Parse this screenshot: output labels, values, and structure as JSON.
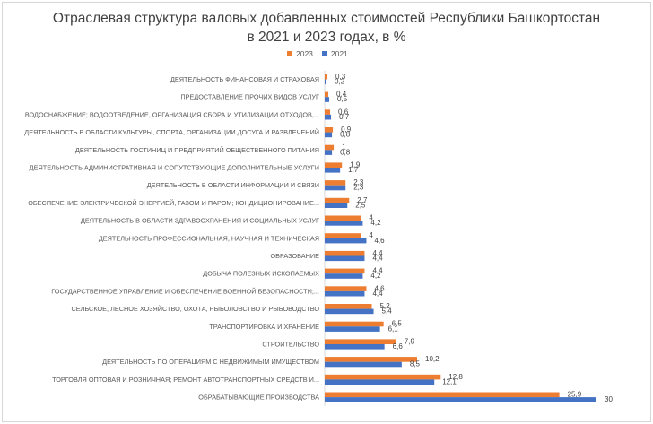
{
  "colors": {
    "series_2023": "#ED7D31",
    "series_2021": "#4472C4"
  },
  "chart_data": {
    "type": "bar",
    "orientation": "horizontal",
    "title": "Отраслевая структура валовых добавленных стоимостей  Республики Башкортостан в 2021 и 2023 годах, в %",
    "title_lines": [
      "Отраслевая структура валовых добавленных стоимостей  Республики Башкортостан",
      "в 2021 и 2023 годах, в %"
    ],
    "xlabel": "",
    "ylabel": "",
    "xlim": [
      0,
      30
    ],
    "grid": false,
    "legend_position": "top",
    "categories": [
      "ДЕЯТЕЛЬНОСТЬ ФИНАНСОВАЯ И СТРАХОВАЯ",
      "ПРЕДОСТАВЛЕНИЕ ПРОЧИХ ВИДОВ УСЛУГ",
      "ВОДОСНАБЖЕНИЕ; ВОДООТВЕДЕНИЕ, ОРГАНИЗАЦИЯ СБОРА И УТИЛИЗАЦИИ ОТХОДОВ,...",
      "ДЕЯТЕЛЬНОСТЬ В ОБЛАСТИ КУЛЬТУРЫ, СПОРТА, ОРГАНИЗАЦИИ ДОСУГА И РАЗВЛЕЧЕНИЙ",
      "ДЕЯТЕЛЬНОСТЬ ГОСТИНИЦ И ПРЕДПРИЯТИЙ ОБЩЕСТВЕННОГО ПИТАНИЯ",
      "ДЕЯТЕЛЬНОСТЬ АДМИНИСТРАТИВНАЯ И СОПУТСТВУЮЩИЕ ДОПОЛНИТЕЛЬНЫЕ УСЛУГИ",
      "ДЕЯТЕЛЬНОСТЬ В ОБЛАСТИ ИНФОРМАЦИИ И СВЯЗИ",
      "ОБЕСПЕЧЕНИЕ ЭЛЕКТРИЧЕСКОЙ ЭНЕРГИЕЙ, ГАЗОМ И ПАРОМ; КОНДИЦИОНИРОВАНИЕ...",
      "ДЕЯТЕЛЬНОСТЬ В ОБЛАСТИ ЗДРАВООХРАНЕНИЯ И СОЦИАЛЬНЫХ УСЛУГ",
      "ДЕЯТЕЛЬНОСТЬ ПРОФЕССИОНАЛЬНАЯ, НАУЧНАЯ И ТЕХНИЧЕСКАЯ",
      "ОБРАЗОВАНИЕ",
      "ДОБЫЧА ПОЛЕЗНЫХ ИСКОПАЕМЫХ",
      "ГОСУДАРСТВЕННОЕ УПРАВЛЕНИЕ И ОБЕСПЕЧЕНИЕ ВОЕННОЙ БЕЗОПАСНОСТИ;...",
      "СЕЛЬСКОЕ, ЛЕСНОЕ ХОЗЯЙСТВО, ОХОТА, РЫБОЛОВСТВО И РЫБОВОДСТВО",
      "ТРАНСПОРТИРОВКА И ХРАНЕНИЕ",
      "СТРОИТЕЛЬСТВО",
      "ДЕЯТЕЛЬНОСТЬ ПО ОПЕРАЦИЯМ С НЕДВИЖИМЫМ ИМУЩЕСТВОМ",
      "ТОРГОВЛЯ ОПТОВАЯ И РОЗНИЧНАЯ; РЕМОНТ АВТОТРАНСПОРТНЫХ СРЕДСТВ И...",
      "ОБРАБАТЫВАЮЩИЕ ПРОИЗВОДСТВА"
    ],
    "series": [
      {
        "name": "2023",
        "values": [
          0.3,
          0.4,
          0.6,
          0.9,
          1,
          1.9,
          2.3,
          2.7,
          4,
          4,
          4.4,
          4.4,
          4.6,
          5.2,
          6.5,
          7.9,
          10.2,
          12.8,
          25.9
        ],
        "labels": [
          "0,3",
          "0,4",
          "0,6",
          "0,9",
          "1",
          "1,9",
          "2,3",
          "2,7",
          "4",
          "4",
          "4,4",
          "4,4",
          "4,6",
          "5,2",
          "6,5",
          "7,9",
          "10,2",
          "12,8",
          "25,9"
        ]
      },
      {
        "name": "2021",
        "values": [
          0.2,
          0.5,
          0.7,
          0.8,
          0.8,
          1.7,
          2.3,
          2.5,
          4.2,
          4.6,
          4.4,
          4.2,
          4.4,
          5.4,
          6.1,
          6.6,
          8.5,
          12.1,
          30
        ],
        "labels": [
          "0,2",
          "0,5",
          "0,7",
          "0,8",
          "0,8",
          "1,7",
          "2,3",
          "2,5",
          "4,2",
          "4,6",
          "4,4",
          "4,2",
          "4,4",
          "5,4",
          "6,1",
          "6,6",
          "8,5",
          "12,1",
          "30"
        ]
      }
    ]
  }
}
